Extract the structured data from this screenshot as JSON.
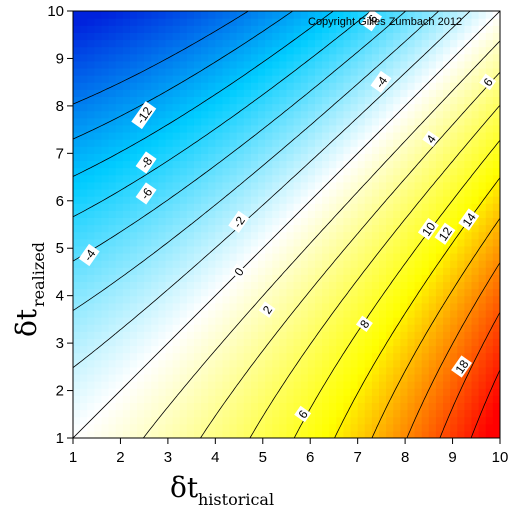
{
  "chart_data": {
    "type": "heatmap",
    "subtype": "contour",
    "title": "",
    "annotation": "Copyright Gilles Zumbach 2012",
    "xlabel": {
      "main": "δt",
      "sub": "historical"
    },
    "ylabel": {
      "main": "δt",
      "sub": "realized"
    },
    "xlim": [
      1,
      10
    ],
    "ylim": [
      1,
      10
    ],
    "xticks": [
      "1",
      "2",
      "3",
      "4",
      "5",
      "6",
      "7",
      "8",
      "9",
      "10"
    ],
    "yticks": [
      "1",
      "2",
      "3",
      "4",
      "5",
      "6",
      "7",
      "8",
      "9",
      "10"
    ],
    "contour_levels": [
      -14,
      -12,
      -10,
      -8,
      -6,
      -4,
      -2,
      0,
      2,
      4,
      6,
      8,
      10,
      12,
      14,
      16,
      18
    ],
    "color_scale": {
      "negative": [
        "#0022dd",
        "#00ccff",
        "#ffffff"
      ],
      "positive": [
        "#ffffff",
        "#ffff00",
        "#ff0000"
      ]
    },
    "contour_labels": [
      {
        "value": "-12",
        "x": 2.5,
        "y": 7.8
      },
      {
        "value": "-8",
        "x": 2.55,
        "y": 6.8
      },
      {
        "value": "-6",
        "x": 2.55,
        "y": 6.15
      },
      {
        "value": "-4",
        "x": 1.35,
        "y": 4.85
      },
      {
        "value": "-2",
        "x": 4.5,
        "y": 5.55
      },
      {
        "value": "0",
        "x": 4.5,
        "y": 4.5
      },
      {
        "value": "2",
        "x": 5.1,
        "y": 3.7
      },
      {
        "value": "6",
        "x": 5.85,
        "y": 1.5
      },
      {
        "value": "8",
        "x": 7.15,
        "y": 3.4
      },
      {
        "value": "10",
        "x": 8.5,
        "y": 5.4
      },
      {
        "value": "12",
        "x": 8.85,
        "y": 5.3
      },
      {
        "value": "14",
        "x": 9.35,
        "y": 5.6
      },
      {
        "value": "18",
        "x": 9.2,
        "y": 2.5
      },
      {
        "value": "4",
        "x": 8.55,
        "y": 7.3
      },
      {
        "value": "-4",
        "x": 7.5,
        "y": 8.5
      },
      {
        "value": "-6",
        "x": 7.3,
        "y": 9.8
      },
      {
        "value": "6",
        "x": 9.75,
        "y": 8.5
      }
    ]
  }
}
